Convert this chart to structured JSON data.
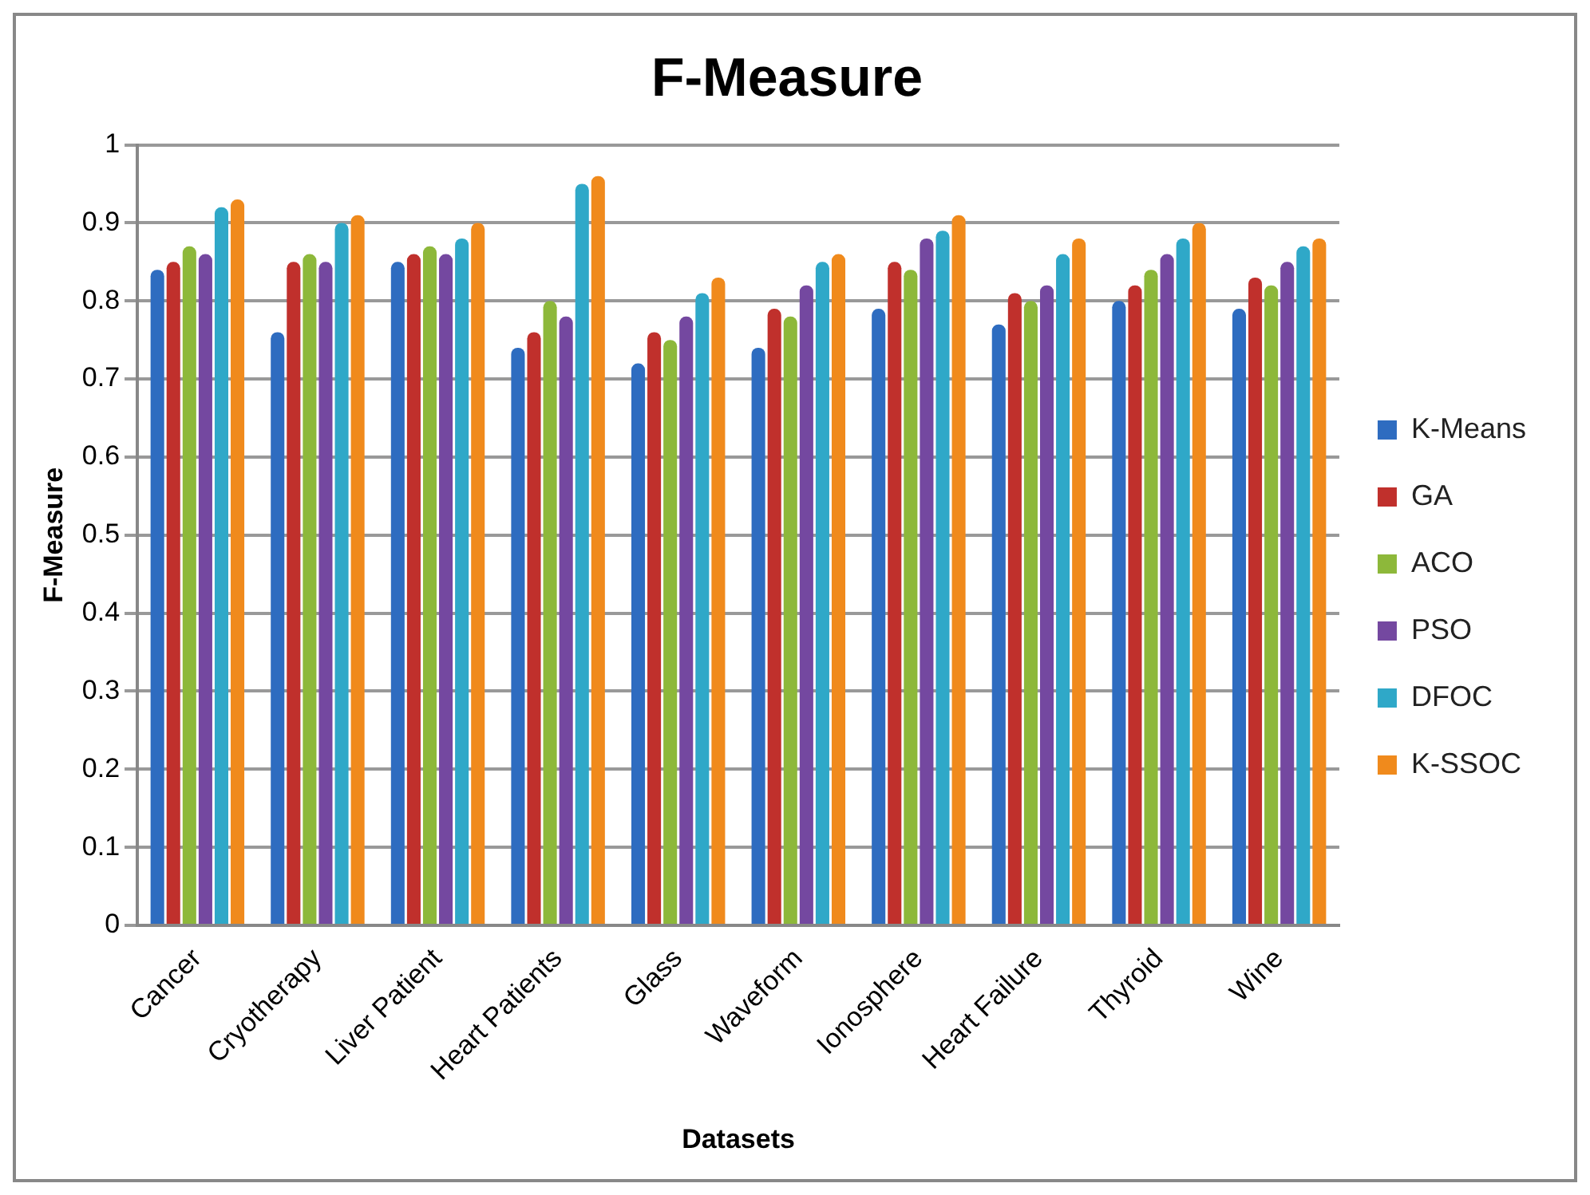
{
  "chart_data": {
    "type": "bar",
    "title": "F-Measure",
    "xlabel": "Datasets",
    "ylabel": "F-Measure",
    "categories": [
      "Cancer",
      "Cryotherapy",
      "Liver Patient",
      "Heart Patients",
      "Glass",
      "Waveform",
      "Ionosphere",
      "Heart Failure",
      "Thyroid",
      "Wine"
    ],
    "series": [
      {
        "name": "K-Means",
        "color": "#2e6cc0",
        "values": [
          0.84,
          0.76,
          0.85,
          0.74,
          0.72,
          0.74,
          0.79,
          0.77,
          0.8,
          0.79
        ]
      },
      {
        "name": "GA",
        "color": "#c0302c",
        "values": [
          0.85,
          0.85,
          0.86,
          0.76,
          0.76,
          0.79,
          0.85,
          0.81,
          0.82,
          0.83
        ]
      },
      {
        "name": "ACO",
        "color": "#8db83a",
        "values": [
          0.87,
          0.86,
          0.87,
          0.8,
          0.75,
          0.78,
          0.84,
          0.8,
          0.84,
          0.82
        ]
      },
      {
        "name": "PSO",
        "color": "#7448a0",
        "values": [
          0.86,
          0.85,
          0.86,
          0.78,
          0.78,
          0.82,
          0.88,
          0.82,
          0.86,
          0.85
        ]
      },
      {
        "name": "DFOC",
        "color": "#2fa8c8",
        "values": [
          0.92,
          0.9,
          0.88,
          0.95,
          0.81,
          0.85,
          0.89,
          0.86,
          0.88,
          0.87
        ]
      },
      {
        "name": "K-SSOC",
        "color": "#f08a1c",
        "values": [
          0.93,
          0.91,
          0.9,
          0.96,
          0.83,
          0.86,
          0.91,
          0.88,
          0.9,
          0.88
        ]
      }
    ],
    "ylim": [
      0,
      1
    ],
    "yticks": [
      0,
      0.1,
      0.2,
      0.3,
      0.4,
      0.5,
      0.6,
      0.7,
      0.8,
      0.9,
      1
    ],
    "grid": "y",
    "legend": "right"
  }
}
